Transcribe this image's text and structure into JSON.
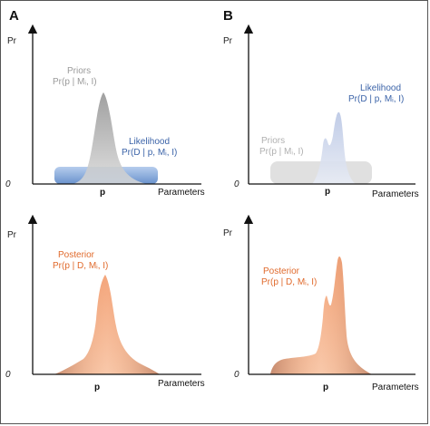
{
  "panels": {
    "A": {
      "label": "A",
      "top": {
        "y_label": "Pr",
        "x_label": "Parameters",
        "origin": "0",
        "x_tick": "p",
        "priors": {
          "title": "Priors",
          "formula": "Pr(p | Mᵢ, I)",
          "color": "#9a9a9a"
        },
        "likelihood": {
          "title": "Likelihood",
          "formula": "Pr(D | p, Mᵢ, I)",
          "color": "#3b63a8"
        }
      },
      "bottom": {
        "y_label": "Pr",
        "x_label": "Parameters",
        "origin": "0",
        "x_tick": "p",
        "posterior": {
          "title": "Posterior",
          "formula": "Pr(p | D, Mᵢ, I)",
          "color": "#e06a2c"
        }
      }
    },
    "B": {
      "label": "B",
      "top": {
        "y_label": "Pr",
        "x_label": "Parameters",
        "origin": "0",
        "x_tick": "p",
        "priors": {
          "title": "Priors",
          "formula": "Pr(p | Mᵢ, I)",
          "color": "#9a9a9a"
        },
        "likelihood": {
          "title": "Likelihood",
          "formula": "Pr(D | p, Mᵢ, I)",
          "color": "#3b63a8"
        }
      },
      "bottom": {
        "y_label": "Pr",
        "x_label": "Parameters",
        "origin": "0",
        "x_tick": "p",
        "posterior": {
          "title": "Posterior",
          "formula": "Pr(p | D, Mᵢ, I)",
          "color": "#e06a2c"
        }
      }
    }
  }
}
